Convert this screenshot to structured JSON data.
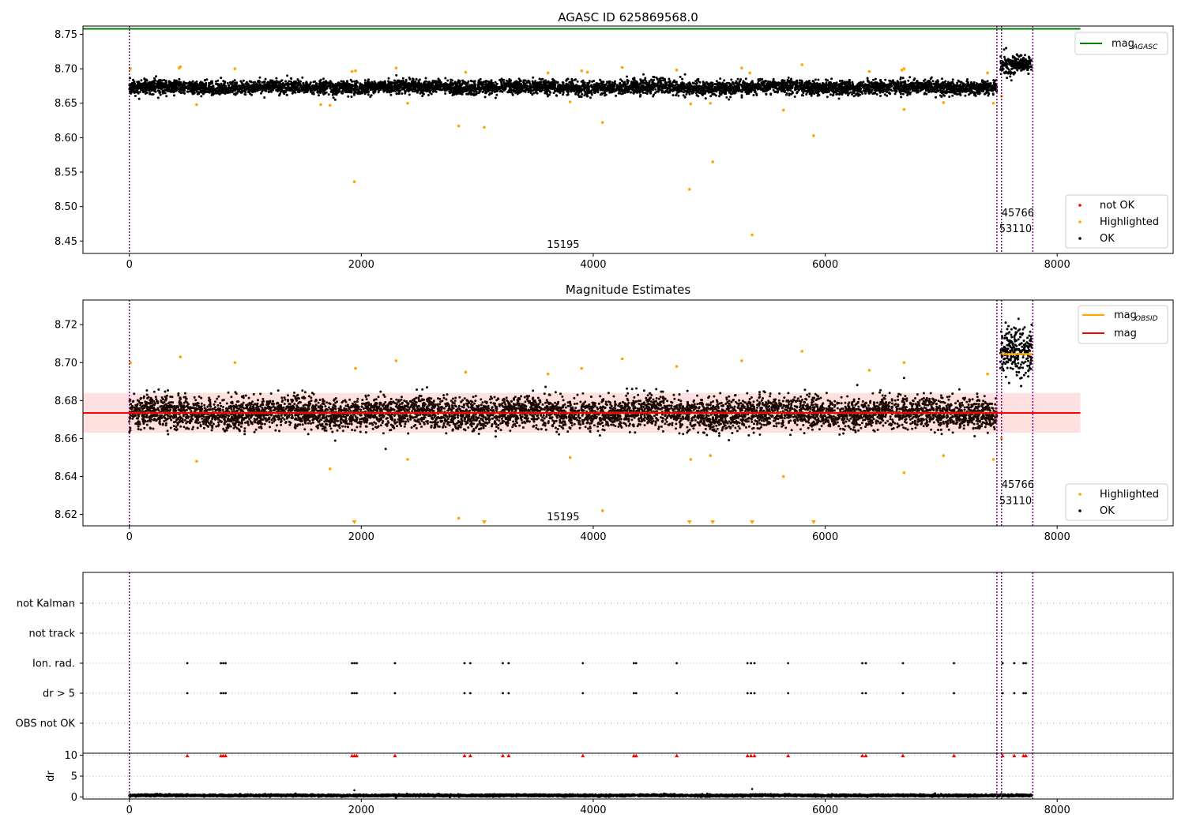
{
  "chart_data": [
    {
      "type": "scatter",
      "title": "AGASC ID 625869568.0",
      "xlabel": "",
      "ylabel": "",
      "xlim": [
        -400,
        9000
      ],
      "ylim": [
        8.432,
        8.762
      ],
      "x_ticks": [
        0,
        2000,
        4000,
        6000,
        8000
      ],
      "y_ticks": [
        8.45,
        8.5,
        8.55,
        8.6,
        8.65,
        8.7,
        8.75
      ],
      "y_tick_labels": [
        "8.45",
        "8.50",
        "8.55",
        "8.60",
        "8.65",
        "8.70",
        "8.75"
      ],
      "vlines": [
        0,
        7480,
        7520,
        7790
      ],
      "obsid_labels": [
        {
          "text": "15195",
          "x": 3600,
          "y": 8.44
        },
        {
          "text": "53110",
          "x": 7500,
          "y": 8.463
        },
        {
          "text": "45766",
          "x": 7520,
          "y": 8.486
        }
      ],
      "mag_agasc": {
        "y": 8.758,
        "x_range": [
          -400,
          8200
        ]
      },
      "series": [
        {
          "name": "not OK",
          "color": "#ff0000",
          "values": []
        },
        {
          "name": "Highlighted",
          "color": "#ffa500",
          "values": [
            [
              2840,
              8.617
            ],
            [
              3060,
              8.615
            ],
            [
              4080,
              8.622
            ],
            [
              1940,
              8.536
            ],
            [
              4830,
              8.525
            ],
            [
              5030,
              8.565
            ],
            [
              5370,
              8.459
            ],
            [
              5900,
              8.603
            ],
            [
              6680,
              8.641
            ],
            [
              5640,
              8.64
            ],
            [
              1730,
              8.647
            ],
            [
              580,
              8.648
            ],
            [
              3950,
              8.695
            ],
            [
              4250,
              8.702
            ],
            [
              10,
              8.7
            ],
            [
              440,
              8.703
            ],
            [
              1950,
              8.697
            ],
            [
              2300,
              8.701
            ],
            [
              5280,
              8.701
            ],
            [
              5800,
              8.706
            ],
            [
              6380,
              8.696
            ],
            [
              6680,
              8.7
            ],
            [
              7400,
              8.694
            ],
            [
              910,
              8.7
            ],
            [
              2900,
              8.695
            ],
            [
              3610,
              8.694
            ],
            [
              4720,
              8.698
            ],
            [
              7520,
              8.66
            ],
            [
              7450,
              8.65
            ],
            [
              3800,
              8.652
            ],
            [
              2400,
              8.65
            ],
            [
              1650,
              8.648
            ],
            [
              7020,
              8.651
            ],
            [
              5010,
              8.65
            ],
            [
              4840,
              8.649
            ],
            [
              1920,
              8.696
            ],
            [
              430,
              8.701
            ],
            [
              3900,
              8.697
            ],
            [
              5350,
              8.694
            ],
            [
              6660,
              8.698
            ]
          ]
        },
        {
          "name": "OK",
          "color": "#000000",
          "band": {
            "x": [
              0,
              7480
            ],
            "y_center": 8.673,
            "y_spread": 0.011
          },
          "tail": {
            "x": [
              7510,
              7780
            ],
            "y_center": 8.705,
            "y_spread": 0.015
          }
        }
      ],
      "legend": {
        "position": "lower-right",
        "entries": [
          "not OK",
          "Highlighted",
          "OK"
        ]
      },
      "legend_upper": {
        "position": "upper-right",
        "label": "mag",
        "sub": "AGASC"
      }
    },
    {
      "type": "scatter",
      "title": "Magnitude Estimates",
      "xlabel": "",
      "ylabel": "",
      "xlim": [
        -400,
        9000
      ],
      "ylim": [
        8.614,
        8.733
      ],
      "x_ticks": [
        0,
        2000,
        4000,
        6000,
        8000
      ],
      "y_ticks": [
        8.62,
        8.64,
        8.66,
        8.68,
        8.7,
        8.72
      ],
      "y_tick_labels": [
        "8.62",
        "8.64",
        "8.66",
        "8.68",
        "8.70",
        "8.72"
      ],
      "vlines": [
        0,
        7480,
        7520,
        7790
      ],
      "obsid_labels": [
        {
          "text": "15195",
          "x": 3600,
          "y": 8.617
        },
        {
          "text": "53110",
          "x": 7500,
          "y": 8.6255
        },
        {
          "text": "45766",
          "x": 7520,
          "y": 8.634
        }
      ],
      "mag": {
        "value": 8.6735,
        "band": [
          8.663,
          8.684
        ],
        "x_range": [
          -400,
          8200
        ]
      },
      "mag_obsid": [
        {
          "x_range": [
            0,
            7480
          ],
          "value": 8.6735
        },
        {
          "x_range": [
            7510,
            7790
          ],
          "value": 8.7045
        }
      ],
      "series": [
        {
          "name": "Highlighted",
          "color": "#ffa500",
          "values": [
            [
              10,
              8.7
            ],
            [
              440,
              8.703
            ],
            [
              910,
              8.7
            ],
            [
              1950,
              8.697
            ],
            [
              2300,
              8.701
            ],
            [
              3900,
              8.697
            ],
            [
              4250,
              8.702
            ],
            [
              4720,
              8.698
            ],
            [
              5280,
              8.701
            ],
            [
              5800,
              8.706
            ],
            [
              6380,
              8.696
            ],
            [
              6680,
              8.7
            ],
            [
              7400,
              8.694
            ],
            [
              2900,
              8.695
            ],
            [
              3610,
              8.694
            ],
            [
              580,
              8.648
            ],
            [
              1730,
              8.644
            ],
            [
              2400,
              8.649
            ],
            [
              3800,
              8.65
            ],
            [
              4840,
              8.649
            ],
            [
              5010,
              8.651
            ],
            [
              5640,
              8.64
            ],
            [
              6680,
              8.642
            ],
            [
              7020,
              8.651
            ],
            [
              7450,
              8.649
            ],
            [
              7520,
              8.66
            ],
            [
              2840,
              8.618
            ],
            [
              4080,
              8.622
            ]
          ]
        },
        {
          "name": "Highlighted (off scale)",
          "color": "#ffa500",
          "marker": "triangle-down",
          "x": [
            1940,
            3060,
            4830,
            5030,
            5370,
            5900
          ]
        },
        {
          "name": "OK",
          "color": "#000000",
          "band": {
            "x": [
              0,
              7480
            ],
            "y_center": 8.6735,
            "y_spread": 0.009
          },
          "tail": {
            "x": [
              7510,
              7780
            ],
            "y_center": 8.705,
            "y_spread": 0.014
          }
        }
      ],
      "legend": {
        "position": "lower-right",
        "entries": [
          "Highlighted",
          "OK"
        ]
      },
      "legend_upper": {
        "position": "upper-right",
        "entries": [
          {
            "label": "mag",
            "sub": "OBSID"
          },
          {
            "label": "mag",
            "sub": ""
          }
        ]
      }
    },
    {
      "type": "scatter",
      "title": "",
      "xlabel": "",
      "ylabel": "",
      "xlim": [
        -400,
        9000
      ],
      "categories": [
        "not Kalman",
        "not track",
        "Ion. rad.",
        "dr > 5",
        "OBS not OK"
      ],
      "vlines": [
        0,
        7480,
        7520,
        7790
      ],
      "flag_events": {
        "Ion. rad.": [
          500,
          790,
          810,
          830,
          1920,
          1940,
          1960,
          2290,
          2890,
          2940,
          3220,
          3270,
          3910,
          4350,
          4370,
          4720,
          5330,
          5360,
          5390,
          5680,
          6320,
          6350,
          6670,
          7110,
          7530,
          7630,
          7710,
          7730
        ],
        "dr > 5": [
          500,
          790,
          810,
          830,
          1920,
          1940,
          1960,
          2290,
          2890,
          2940,
          3220,
          3270,
          3910,
          4350,
          4370,
          4720,
          5330,
          5360,
          5390,
          5680,
          6320,
          6350,
          6670,
          7110,
          7530,
          7630,
          7710,
          7730
        ]
      }
    },
    {
      "type": "scatter",
      "title": "",
      "xlabel": "",
      "ylabel": "dr",
      "xlim": [
        -400,
        9000
      ],
      "ylim": [
        -0.5,
        10.5
      ],
      "x_ticks": [
        0,
        2000,
        4000,
        6000,
        8000
      ],
      "y_ticks": [
        0,
        5,
        10
      ],
      "y_tick_labels": [
        "0",
        "5",
        "10"
      ],
      "vlines": [
        0,
        7480,
        7520,
        7790
      ],
      "series": [
        {
          "name": "dr",
          "color": "#000000",
          "band": {
            "x": [
              0,
              7780
            ],
            "y_center": 0.35,
            "y_spread": 0.25
          }
        },
        {
          "name": "dr clipped",
          "color": "#ff0000",
          "marker": "triangle-up",
          "y": 10,
          "x": [
            500,
            790,
            810,
            830,
            1920,
            1940,
            1960,
            2290,
            2890,
            2940,
            3220,
            3270,
            3910,
            4350,
            4370,
            4720,
            5330,
            5360,
            5390,
            5680,
            6320,
            6350,
            6670,
            7110,
            7530,
            7630,
            7710,
            7730
          ]
        },
        {
          "name": "dr outliers",
          "color": "#000000",
          "values": [
            [
              1940,
              1.6
            ],
            [
              5370,
              1.9
            ]
          ]
        }
      ]
    }
  ]
}
